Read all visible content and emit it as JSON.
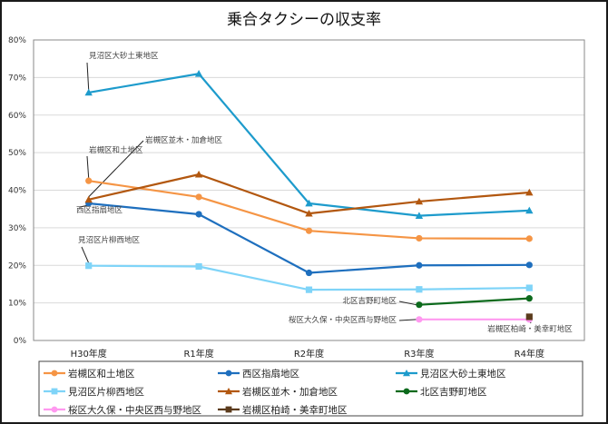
{
  "chart_data": {
    "type": "line",
    "title": "乗合タクシーの収支率",
    "xlabel": "",
    "ylabel": "",
    "categories": [
      "H30年度",
      "R1年度",
      "R2年度",
      "R3年度",
      "R4年度"
    ],
    "ylim": [
      0,
      80
    ],
    "y_ticks": [
      0,
      10,
      20,
      30,
      40,
      50,
      60,
      70,
      80
    ],
    "y_tick_labels": [
      "0%",
      "10%",
      "20%",
      "30%",
      "40%",
      "50%",
      "60%",
      "70%",
      "80%"
    ],
    "grid": true,
    "legend_position": "bottom",
    "series": [
      {
        "name": "岩槻区和土地区",
        "color": "#F59545",
        "marker": "circle",
        "values": [
          42.5,
          38.2,
          29.2,
          27.2,
          27.1
        ]
      },
      {
        "name": "西区指扇地区",
        "color": "#1E6FBE",
        "marker": "circle",
        "values": [
          36.5,
          33.6,
          18.0,
          20.0,
          20.1
        ]
      },
      {
        "name": "見沼区大砂土東地区",
        "color": "#1D9BCC",
        "marker": "triangle",
        "values": [
          66.0,
          71.0,
          36.5,
          33.2,
          34.6
        ]
      },
      {
        "name": "見沼区片柳西地区",
        "color": "#7FD4F8",
        "marker": "square",
        "values": [
          19.9,
          19.7,
          13.5,
          13.6,
          14.0
        ]
      },
      {
        "name": "岩槻区並木・加倉地区",
        "color": "#B2570F",
        "marker": "triangle",
        "values": [
          37.5,
          44.2,
          33.8,
          37.0,
          39.4
        ]
      },
      {
        "name": "北区吉野町地区",
        "color": "#0C6A1C",
        "marker": "circle",
        "values": [
          null,
          null,
          null,
          9.5,
          11.2
        ]
      },
      {
        "name": "桜区大久保・中央区西与野地区",
        "color": "#FF99F0",
        "marker": "circle",
        "values": [
          null,
          null,
          null,
          5.6,
          5.6
        ]
      },
      {
        "name": "岩槻区柏崎・美幸町地区",
        "color": "#5B3B1C",
        "marker": "square",
        "values": [
          null,
          null,
          null,
          null,
          6.3
        ]
      }
    ],
    "annotations": [
      {
        "text": "見沼区大砂土東地区",
        "series": 2,
        "point": 0
      },
      {
        "text": "岩槻区和土地区",
        "series": 0,
        "point": 0
      },
      {
        "text": "岩槻区並木・加倉地区",
        "series": 4,
        "point": 0
      },
      {
        "text": "西区指扇地区",
        "series": 1,
        "point": 0
      },
      {
        "text": "見沼区片柳西地区",
        "series": 3,
        "point": 0
      },
      {
        "text": "北区吉野町地区",
        "series": 5,
        "point": 3
      },
      {
        "text": "桜区大久保・中央区西与野地区",
        "series": 6,
        "point": 3
      },
      {
        "text": "岩槻区柏崎・美幸町地区",
        "series": 7,
        "point": 4
      }
    ]
  }
}
